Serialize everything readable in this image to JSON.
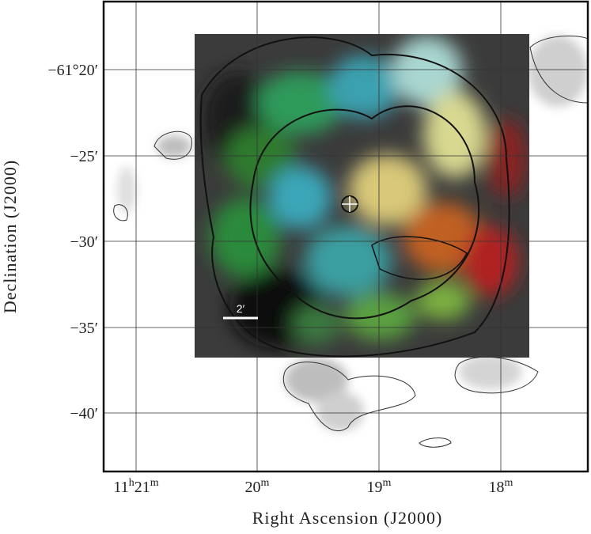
{
  "figure": {
    "x_axis": {
      "label": "Right Ascension (J2000)",
      "ticks": [
        [
          "11",
          "h",
          "21",
          "m"
        ],
        [
          "20",
          "m"
        ],
        [
          "19",
          "m"
        ],
        [
          "18",
          "m"
        ]
      ]
    },
    "y_axis": {
      "label": "Declination (J2000)",
      "ticks": [
        "−61°20′",
        "−25′",
        "−30′",
        "−35′",
        "−40′"
      ]
    },
    "scale_bar": "2′"
  }
}
